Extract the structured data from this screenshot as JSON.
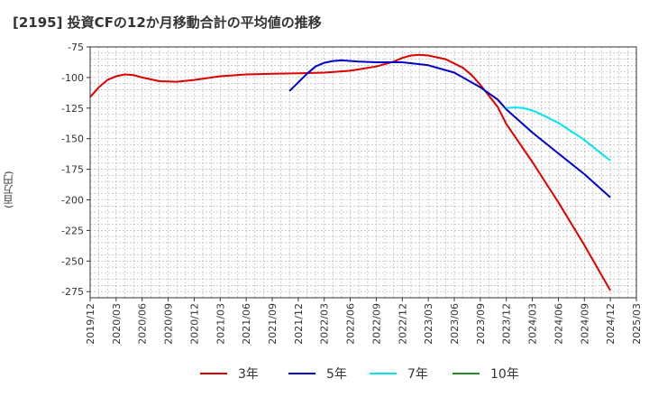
{
  "chart_data": {
    "type": "line",
    "title": "[2195]  投資CFの12か月移動合計の平均値の推移",
    "ylabel": "(百万円)",
    "xlabel": "",
    "ylim": [
      -280,
      -75
    ],
    "yticks": [
      -75,
      -100,
      -125,
      -150,
      -175,
      -200,
      -225,
      -250,
      -275
    ],
    "xticks": [
      "2019/12",
      "2020/03",
      "2020/06",
      "2020/09",
      "2020/12",
      "2021/03",
      "2021/06",
      "2021/09",
      "2021/12",
      "2022/03",
      "2022/06",
      "2022/09",
      "2022/12",
      "2023/03",
      "2023/06",
      "2023/09",
      "2023/12",
      "2024/03",
      "2024/06",
      "2024/09",
      "2024/12",
      "2025/03"
    ],
    "grid": true,
    "legend_position": "bottom",
    "series": [
      {
        "name": "3年",
        "color": "#dd0000",
        "points": [
          [
            "2019/12",
            -116
          ],
          [
            "2020/01",
            -108
          ],
          [
            "2020/02",
            -102
          ],
          [
            "2020/03",
            -99
          ],
          [
            "2020/04",
            -97.5
          ],
          [
            "2020/05",
            -98
          ],
          [
            "2020/06",
            -100
          ],
          [
            "2020/08",
            -103
          ],
          [
            "2020/10",
            -103.5
          ],
          [
            "2020/12",
            -102
          ],
          [
            "2021/03",
            -99
          ],
          [
            "2021/06",
            -97.5
          ],
          [
            "2021/09",
            -97
          ],
          [
            "2021/12",
            -96.5
          ],
          [
            "2022/03",
            -96
          ],
          [
            "2022/06",
            -94.5
          ],
          [
            "2022/09",
            -91
          ],
          [
            "2022/11",
            -87
          ],
          [
            "2022/12",
            -84
          ],
          [
            "2023/01",
            -82
          ],
          [
            "2023/02",
            -81.5
          ],
          [
            "2023/03",
            -82
          ],
          [
            "2023/05",
            -85
          ],
          [
            "2023/07",
            -92
          ],
          [
            "2023/08",
            -98
          ],
          [
            "2023/09",
            -106
          ],
          [
            "2023/10",
            -115
          ],
          [
            "2023/11",
            -124
          ],
          [
            "2023/12",
            -138
          ],
          [
            "2024/03",
            -169
          ],
          [
            "2024/06",
            -202
          ],
          [
            "2024/09",
            -237
          ],
          [
            "2024/12",
            -274
          ]
        ]
      },
      {
        "name": "5年",
        "color": "#0000cc",
        "points": [
          [
            "2021/11",
            -111
          ],
          [
            "2021/12",
            -104
          ],
          [
            "2022/01",
            -97
          ],
          [
            "2022/02",
            -91
          ],
          [
            "2022/03",
            -88
          ],
          [
            "2022/04",
            -86.5
          ],
          [
            "2022/05",
            -86
          ],
          [
            "2022/07",
            -87
          ],
          [
            "2022/09",
            -87.5
          ],
          [
            "2022/12",
            -87.5
          ],
          [
            "2023/03",
            -90
          ],
          [
            "2023/06",
            -96
          ],
          [
            "2023/09",
            -108
          ],
          [
            "2023/11",
            -118
          ],
          [
            "2023/12",
            -126
          ],
          [
            "2024/03",
            -145
          ],
          [
            "2024/06",
            -162
          ],
          [
            "2024/09",
            -179
          ],
          [
            "2024/12",
            -198
          ]
        ]
      },
      {
        "name": "7年",
        "color": "#00e5ee",
        "points": [
          [
            "2023/12",
            -125
          ],
          [
            "2024/01",
            -124.5
          ],
          [
            "2024/02",
            -125
          ],
          [
            "2024/03",
            -127
          ],
          [
            "2024/04",
            -130
          ],
          [
            "2024/06",
            -137
          ],
          [
            "2024/09",
            -151
          ],
          [
            "2024/12",
            -168
          ]
        ]
      },
      {
        "name": "10年",
        "color": "#228b22",
        "points": []
      }
    ]
  }
}
